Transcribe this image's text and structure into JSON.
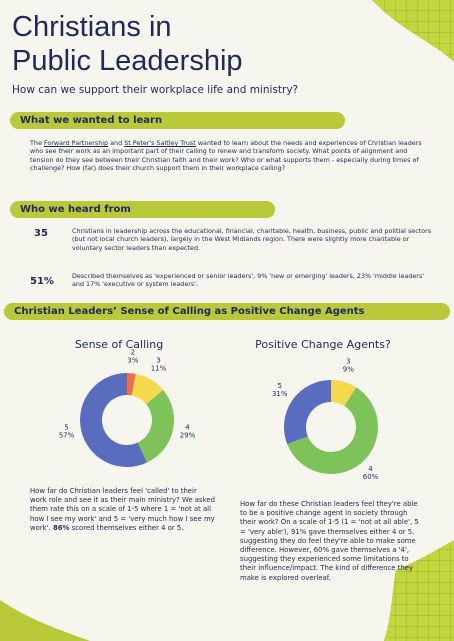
{
  "header": {
    "title_lines": [
      "Christians in",
      "Public Leadership"
    ],
    "subtitle": "How can we support their workplace life and ministry?"
  },
  "sections": [
    {
      "heading": "What we wanted to learn",
      "paragraph": [
        "The ",
        "Forward Partnership",
        " and ",
        "St Peter's Saltley Trust",
        " wanted to learn about the needs and experiences of Christian leaders who see their work as an important part of their calling to renew and transform society.  What points of alignment and tension do they see between their Christian faith and their work?  Who or what supports them - especially during times of challenge?  How (far) does their church support them in their workplace calling?"
      ]
    },
    {
      "heading": "Who we heard from",
      "stats": [
        {
          "figure": "35",
          "text": "Christians in leadership across the educational, financial, charitable, health, business, public and politial sectors (but not local church leaders), largely in the West Midlands region. There were slightly more charitable or voluntary sector leaders than expected."
        },
        {
          "figure": "51%",
          "text": "Described themselves as 'experienced or senior leaders', 9% 'new or emerging' leaders, 23% 'middle leaders' and 17% 'executive or system leaders'."
        }
      ]
    },
    {
      "heading": "Christian Leaders’ Sense of Calling as Positive Change Agents",
      "captions": [
        [
          "How far do Christian leaders feel 'called' to their work role and see it as their main ministry?  We asked them rate this on a scale of 1-5 where 1 = 'not at all how I see my work' and 5 = 'very much how I see my work'. ",
          "86%",
          " scored themselves either 4 or 5."
        ],
        [
          "How far do these Christian leaders feel they're able to be a positive change agent in society through their work?  On a scale of 1-5 (1 = 'not at all able', 5 = 'very able'), 91% gave themselves either 4 or 5, suggesting they do feel they're able to make some difference. However, 60% gave themselves a '4', suggesting they experienced some limitations to their influence/impact.  The kind of difference they make is explored overleaf."
        ]
      ]
    }
  ],
  "chart_data": [
    {
      "type": "pie",
      "title": "Sense of Calling",
      "categories": [
        "2",
        "3",
        "4",
        "5"
      ],
      "values": [
        3,
        11,
        29,
        57
      ],
      "value_labels": [
        "3%",
        "11%",
        "29%",
        "57%"
      ],
      "colors": [
        "#ec6f4b",
        "#f6d84c",
        "#7ec25a",
        "#5a6cbd"
      ]
    },
    {
      "type": "pie",
      "title": "Positive Change Agents?",
      "categories": [
        "3",
        "4",
        "5"
      ],
      "values": [
        9,
        60,
        31
      ],
      "value_labels": [
        "9%",
        "60%",
        "31%"
      ],
      "colors": [
        "#f6d84c",
        "#7ec25a",
        "#5a6cbd"
      ]
    }
  ]
}
